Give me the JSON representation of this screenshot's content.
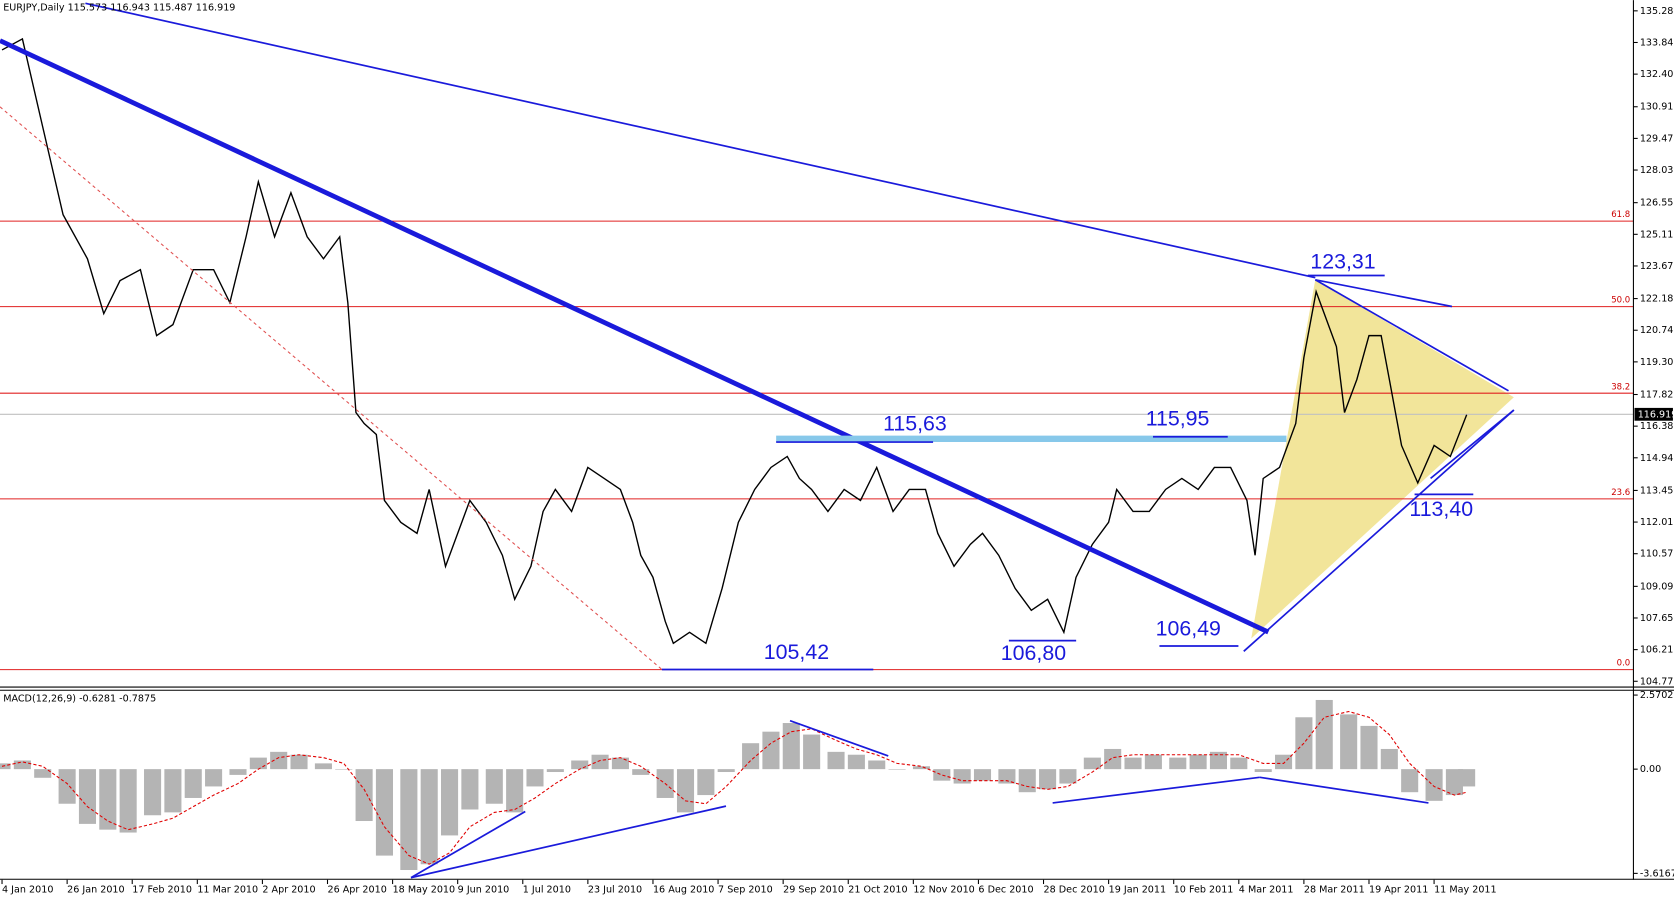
{
  "chart_data": [
    {
      "type": "line",
      "title": "EURJPY,Daily  115.573 116.943 115.487 116.919",
      "x": [
        0,
        5,
        10,
        15,
        21,
        25,
        29,
        34,
        38,
        42,
        47,
        52,
        56,
        60,
        63,
        67,
        71,
        75,
        79,
        83,
        85,
        87,
        89,
        92,
        94,
        98,
        102,
        105,
        109,
        112,
        115,
        119,
        123,
        126,
        130,
        133,
        136,
        140,
        144,
        148,
        152,
        155,
        157,
        160,
        163,
        165,
        169,
        173,
        177,
        181,
        185,
        189,
        193,
        196,
        199,
        203,
        207,
        211,
        215,
        219,
        223,
        227,
        230,
        234,
        238,
        241,
        245,
        249,
        253,
        257,
        261,
        264,
        268,
        272,
        274,
        278,
        282,
        286,
        290,
        294,
        298,
        302,
        306,
        308,
        310,
        314,
        318,
        320,
        323,
        325,
        328,
        330,
        333,
        336,
        339,
        341,
        344,
        348,
        352,
        356,
        360
      ],
      "values": [
        133.5,
        134,
        130,
        126,
        124,
        121.5,
        123,
        123.5,
        120.5,
        121,
        123.5,
        123.5,
        122,
        125,
        127.5,
        125,
        127,
        125,
        124,
        125,
        122,
        117,
        116.5,
        116,
        113,
        112,
        111.5,
        113.5,
        110,
        111.5,
        113,
        112,
        110.5,
        108.5,
        110,
        112.5,
        113.5,
        112.5,
        114.5,
        114,
        113.5,
        112,
        110.5,
        109.5,
        107.5,
        106.5,
        107,
        106.5,
        109,
        112,
        113.5,
        114.5,
        115,
        114,
        113.5,
        112.5,
        113.5,
        113,
        114.5,
        112.5,
        113.5,
        113.5,
        111.5,
        110,
        111,
        111.5,
        110.5,
        109,
        108,
        108.5,
        107,
        109.5,
        111,
        112,
        113.5,
        112.5,
        112.5,
        113.5,
        114,
        113.5,
        114.5,
        114.5,
        113,
        110.5,
        114,
        114.5,
        116.5,
        119.5,
        122.5,
        121.5,
        120,
        117,
        118.5,
        120.5,
        120.5,
        118.5,
        115.5,
        113.8,
        115.5,
        115,
        116.9
      ],
      "color": "#000000",
      "xlim": [
        -0.5,
        401
      ],
      "ylim": [
        104.53,
        135.77
      ],
      "yticks": [
        {
          "value": 135.28,
          "label": "135.280"
        },
        {
          "value": 133.84,
          "label": "133.840"
        },
        {
          "value": 132.4,
          "label": "132.400"
        },
        {
          "value": 130.915,
          "label": "130.915"
        },
        {
          "value": 129.475,
          "label": "129.475"
        },
        {
          "value": 128.035,
          "label": "128.035"
        },
        {
          "value": 126.55,
          "label": "126.550"
        },
        {
          "value": 125.11,
          "label": "125.110"
        },
        {
          "value": 123.67,
          "label": "123.670"
        },
        {
          "value": 122.185,
          "label": "122.185"
        },
        {
          "value": 120.745,
          "label": "120.745"
        },
        {
          "value": 119.305,
          "label": "119.305"
        },
        {
          "value": 117.82,
          "label": "117.820"
        },
        {
          "value": 116.38,
          "label": "116.380"
        },
        {
          "value": 114.94,
          "label": "114.940"
        },
        {
          "value": 113.455,
          "label": "113.455"
        },
        {
          "value": 112.015,
          "label": "112.015"
        },
        {
          "value": 110.575,
          "label": "110.575"
        },
        {
          "value": 109.09,
          "label": "109.090"
        },
        {
          "value": 107.65,
          "label": "107.650"
        },
        {
          "value": 106.21,
          "label": "106.210"
        },
        {
          "value": 104.77,
          "label": "104.770"
        }
      ],
      "xticks": [
        {
          "value": 0,
          "label": "4 Jan 2010"
        },
        {
          "value": 16,
          "label": "26 Jan 2010"
        },
        {
          "value": 32,
          "label": "17 Feb 2010"
        },
        {
          "value": 48,
          "label": "11 Mar 2010"
        },
        {
          "value": 64,
          "label": "2 Apr 2010"
        },
        {
          "value": 80,
          "label": "26 Apr 2010"
        },
        {
          "value": 96,
          "label": "18 May 2010"
        },
        {
          "value": 112,
          "label": "9 Jun 2010"
        },
        {
          "value": 128,
          "label": "1 Jul 2010"
        },
        {
          "value": 144,
          "label": "23 Jul 2010"
        },
        {
          "value": 160,
          "label": "16 Aug 2010"
        },
        {
          "value": 176,
          "label": "7 Sep 2010"
        },
        {
          "value": 192,
          "label": "29 Sep 2010"
        },
        {
          "value": 208,
          "label": "21 Oct 2010"
        },
        {
          "value": 224,
          "label": "12 Nov 2010"
        },
        {
          "value": 240,
          "label": "6 Dec 2010"
        },
        {
          "value": 256,
          "label": "28 Dec 2010"
        },
        {
          "value": 272,
          "label": "19 Jan 2011"
        },
        {
          "value": 288,
          "label": "10 Feb 2011"
        },
        {
          "value": 304,
          "label": "4 Mar 2011"
        },
        {
          "value": 320,
          "label": "28 Mar 2011"
        },
        {
          "value": 336,
          "label": "19 Apr 2011"
        },
        {
          "value": 352,
          "label": "11 May 2011"
        }
      ],
      "levels": [
        {
          "value": 125.71,
          "label": "61.8"
        },
        {
          "value": 121.82,
          "label": "50.0"
        },
        {
          "value": 117.88,
          "label": "38.2"
        },
        {
          "value": 113.07,
          "label": "23.6"
        },
        {
          "value": 105.3,
          "label": "0.0"
        }
      ],
      "level_color": "#e02020",
      "last": 116.919,
      "annotations": [
        "123,31",
        "115,63",
        "115,95",
        "113,40",
        "105,42",
        "106,80",
        "106,49"
      ]
    },
    {
      "type": "macd",
      "title": "MACD(12,26,9) -0.6281 -0.7875",
      "x": [
        0,
        5,
        10,
        16,
        21,
        26,
        31,
        37,
        42,
        47,
        52,
        58,
        63,
        68,
        73,
        79,
        84,
        89,
        94,
        100,
        105,
        110,
        115,
        121,
        126,
        131,
        136,
        142,
        147,
        152,
        157,
        163,
        168,
        173,
        178,
        184,
        189,
        194,
        199,
        205,
        210,
        215,
        220,
        226,
        231,
        236,
        241,
        247,
        252,
        257,
        262,
        268,
        273,
        278,
        283,
        289,
        294,
        299,
        304,
        310,
        315,
        320,
        325,
        331,
        336,
        341,
        346,
        352,
        357,
        360
      ],
      "series": [
        {
          "color": "#b4b4b4",
          "values": [
            0.2,
            0.3,
            -0.3,
            -1.2,
            -1.9,
            -2.1,
            -2.2,
            -1.6,
            -1.5,
            -1.0,
            -0.6,
            -0.2,
            0.4,
            0.6,
            0.5,
            0.2,
            0.0,
            -1.8,
            -3.0,
            -3.5,
            -3.3,
            -2.3,
            -1.4,
            -1.2,
            -1.5,
            -0.6,
            -0.1,
            0.3,
            0.5,
            0.4,
            -0.2,
            -1.0,
            -1.5,
            -0.9,
            -0.1,
            0.9,
            1.3,
            1.6,
            1.2,
            0.6,
            0.5,
            0.3,
            0.0,
            0.1,
            -0.4,
            -0.5,
            -0.4,
            -0.5,
            -0.8,
            -0.7,
            -0.5,
            0.4,
            0.7,
            0.4,
            0.5,
            0.4,
            0.5,
            0.6,
            0.4,
            -0.1,
            0.5,
            1.8,
            2.4,
            1.9,
            1.5,
            0.7,
            -0.8,
            -1.1,
            -0.9,
            -0.6
          ]
        },
        {
          "color": "#e00000",
          "values": [
            0.1,
            0.25,
            0.1,
            -0.5,
            -1.3,
            -1.8,
            -2.1,
            -1.9,
            -1.7,
            -1.3,
            -0.9,
            -0.5,
            0.0,
            0.4,
            0.5,
            0.4,
            0.2,
            -0.7,
            -2.0,
            -3.0,
            -3.3,
            -2.9,
            -2.0,
            -1.5,
            -1.4,
            -1.0,
            -0.5,
            0.0,
            0.3,
            0.4,
            0.1,
            -0.5,
            -1.1,
            -1.2,
            -0.6,
            0.3,
            0.9,
            1.3,
            1.4,
            1.0,
            0.7,
            0.5,
            0.2,
            0.1,
            -0.2,
            -0.4,
            -0.4,
            -0.4,
            -0.6,
            -0.7,
            -0.6,
            -0.1,
            0.4,
            0.5,
            0.5,
            0.5,
            0.5,
            0.5,
            0.5,
            0.2,
            0.2,
            0.9,
            1.8,
            2.0,
            1.8,
            1.2,
            0.2,
            -0.6,
            -0.9,
            -0.8
          ]
        }
      ],
      "xlim": [
        -0.5,
        401
      ],
      "ylim": [
        -3.765,
        2.755
      ],
      "yticks": [
        2.5702,
        {
          "value": 0,
          "label": "0.00"
        },
        -3.6167
      ]
    }
  ]
}
